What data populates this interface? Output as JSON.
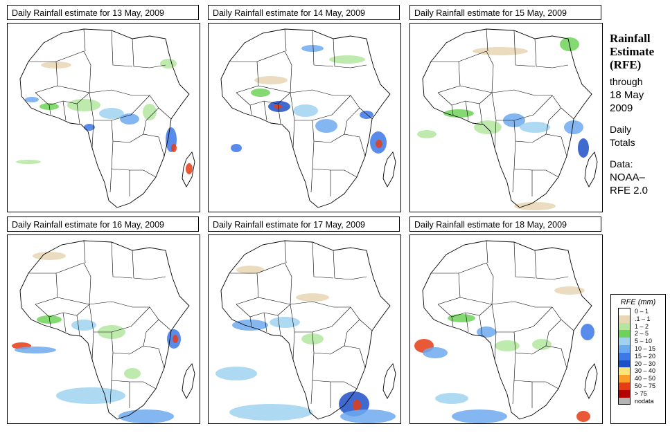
{
  "panels": [
    {
      "title": "Daily Rainfall estimate for  13 May, 2009",
      "day": 13
    },
    {
      "title": "Daily Rainfall estimate for  14 May, 2009",
      "day": 14
    },
    {
      "title": "Daily Rainfall estimate for  15 May, 2009",
      "day": 15
    },
    {
      "title": "Daily Rainfall estimate for  16 May, 2009",
      "day": 16
    },
    {
      "title": "Daily Rainfall estimate for  17 May, 2009",
      "day": 17
    },
    {
      "title": "Daily Rainfall estimate for  18 May, 2009",
      "day": 18
    }
  ],
  "sidebar": {
    "heading_line1": "Rainfall",
    "heading_line2": "Estimate",
    "heading_line3": "(RFE)",
    "through_label": "through",
    "date_line1": "18 May",
    "date_line2": "2009",
    "totals_line1": "Daily",
    "totals_line2": "Totals",
    "data_line1": "Data:",
    "data_line2": "NOAA–",
    "data_line3": "RFE 2.0"
  },
  "legend": {
    "title": "RFE (mm)",
    "items": [
      {
        "label": "0 – 1",
        "color": "#ffffff"
      },
      {
        "label": ".1 – 1",
        "color": "#e8d6b4"
      },
      {
        "label": "1 – 2",
        "color": "#b4e6a0"
      },
      {
        "label": "2 – 5",
        "color": "#6ed25a"
      },
      {
        "label": "5 – 10",
        "color": "#a0d2f0"
      },
      {
        "label": "10 – 15",
        "color": "#6eaaf0"
      },
      {
        "label": "15 – 20",
        "color": "#3c78e6"
      },
      {
        "label": "20 – 30",
        "color": "#1e50c8"
      },
      {
        "label": "30 – 40",
        "color": "#fae678"
      },
      {
        "label": "40 – 50",
        "color": "#faa028"
      },
      {
        "label": "50 – 75",
        "color": "#e63c14"
      },
      {
        "label": "> 75",
        "color": "#b40000"
      },
      {
        "label": "nodata",
        "color": "#b4b4b4"
      }
    ]
  }
}
